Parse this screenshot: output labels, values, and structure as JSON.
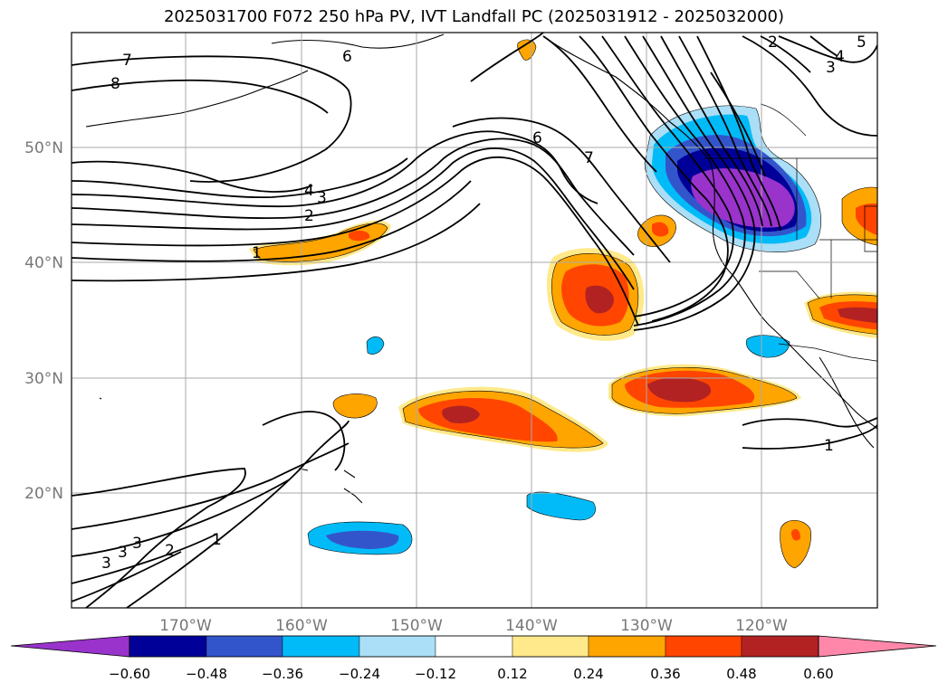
{
  "title": "2025031700 F072 250 hPa PV, IVT Landfall PC (2025031912 - 2025032000)",
  "lon_ticks": [
    "170°W",
    "160°W",
    "150°W",
    "140°W",
    "130°W",
    "120°W"
  ],
  "lat_ticks": [
    "50°N",
    "40°N",
    "30°N",
    "20°N"
  ],
  "colorbar": {
    "ticks": [
      "−0.60",
      "−0.48",
      "−0.36",
      "−0.24",
      "−0.12",
      "0.12",
      "0.24",
      "0.36",
      "0.48",
      "0.60"
    ],
    "colors": [
      "#9933cc",
      "#000099",
      "#3355cc",
      "#00bbf7",
      "#aadff7",
      "#ffffff",
      "#ffe98a",
      "#ffa500",
      "#ff4500",
      "#b22222",
      "#ff88aa"
    ]
  },
  "contour_labels": [
    {
      "id": "pv-7-nw",
      "text": "7"
    },
    {
      "id": "pv-8-nw",
      "text": "8"
    },
    {
      "id": "pv-6-n",
      "text": "6"
    },
    {
      "id": "pv-6-mid",
      "text": "6"
    },
    {
      "id": "pv-7-mid",
      "text": "7"
    },
    {
      "id": "pv-4-mid",
      "text": "4"
    },
    {
      "id": "pv-3-mid",
      "text": "3"
    },
    {
      "id": "pv-2-mid",
      "text": "2"
    },
    {
      "id": "pv-1-mid",
      "text": "1"
    },
    {
      "id": "pv-2-ne",
      "text": "2"
    },
    {
      "id": "pv-3-ne",
      "text": "3"
    },
    {
      "id": "pv-4-ne",
      "text": "4"
    },
    {
      "id": "pv-5-ne",
      "text": "5"
    },
    {
      "id": "pv-1-se",
      "text": "1"
    },
    {
      "id": "pv-3-sw-a",
      "text": "3"
    },
    {
      "id": "pv-3-sw-b",
      "text": "3"
    },
    {
      "id": "pv-3-sw-c",
      "text": "3"
    },
    {
      "id": "pv-2-sw",
      "text": "2"
    },
    {
      "id": "pv-1-sw",
      "text": "1"
    }
  ]
}
